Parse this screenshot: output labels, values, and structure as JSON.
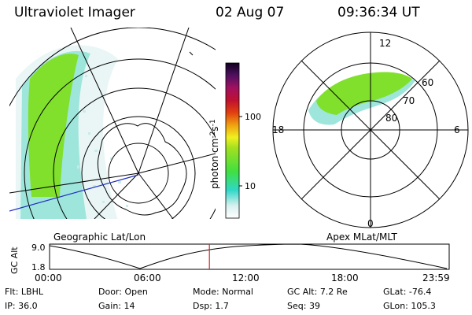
{
  "header": {
    "instrument": "Ultraviolet Imager",
    "date": "02 Aug 07",
    "time": "09:36:34 UT"
  },
  "colorbar": {
    "label": "photon cm",
    "label_exp": "-2",
    "label_unit2": "s",
    "label_exp2": "-1",
    "ticks": [
      "100",
      "10"
    ]
  },
  "polar_plot": {
    "mlt_labels": {
      "top": "12",
      "left": "18",
      "right": "6",
      "bottom": "0"
    },
    "lat_labels": [
      "60",
      "70",
      "80"
    ]
  },
  "timeline": {
    "left_title": "Geographic Lat/Lon",
    "right_title": "Apex MLat/MLT",
    "ylabel": "GC Alt",
    "y_ticks": [
      "9.0",
      "1.8"
    ],
    "x_ticks": [
      "00:00",
      "06:00",
      "12:00",
      "18:00",
      "23:59"
    ],
    "current_time_fraction": 0.4
  },
  "info": {
    "row1": [
      {
        "key": "Flt:",
        "value": "LBHL"
      },
      {
        "key": "Door:",
        "value": "Open"
      },
      {
        "key": "Mode:",
        "value": "Normal"
      },
      {
        "key": "GC Alt:",
        "value": "7.2 Re"
      },
      {
        "key": "GLat:",
        "value": "-76.4"
      }
    ],
    "row2": [
      {
        "key": "IP:",
        "value": "36.0"
      },
      {
        "key": "Gain:",
        "value": "14"
      },
      {
        "key": "Dsp:",
        "value": "1.7"
      },
      {
        "key": "Seq:",
        "value": "39"
      },
      {
        "key": "GLon:",
        "value": "105.3"
      }
    ]
  },
  "colors": {
    "aurora_green": "#7fe02a",
    "aurora_cyan": "#8fe8e0",
    "marker_red": "#e02020",
    "coastline_blue": "#2030c0"
  }
}
